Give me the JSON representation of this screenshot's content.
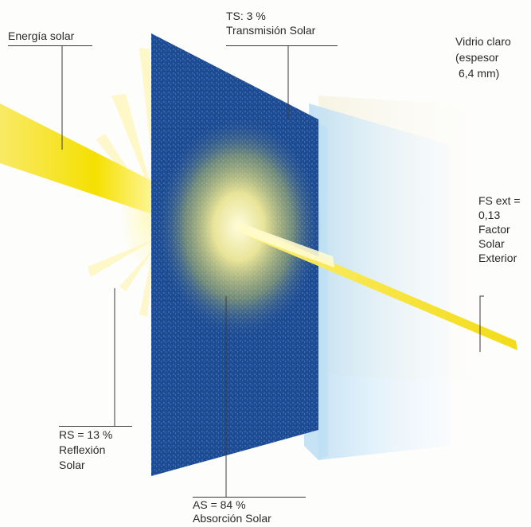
{
  "labels": {
    "solar_energy": "Energía solar",
    "ts_value": "TS: 3 %",
    "ts_name": "Transmisión Solar",
    "glass_line1": "Vidrio claro",
    "glass_line2": "(espesor",
    "glass_line3": "6,4 mm)",
    "fs_line1": "FS ext =",
    "fs_line2": "0,13",
    "fs_line3": "Factor",
    "fs_line4": "Solar",
    "fs_line5": "Exterior",
    "rs_value": "RS = 13 %",
    "rs_line2": "Reflexión",
    "rs_line3": "Solar",
    "as_value": "AS = 84 %",
    "as_name": "Absorción Solar"
  },
  "colors": {
    "coated_pane": "#1f4f9a",
    "clear_glass": "#cfe6f5",
    "beam": "#f6e200",
    "glow": "#fff7a0",
    "leader_line": "#3a3a3a"
  }
}
